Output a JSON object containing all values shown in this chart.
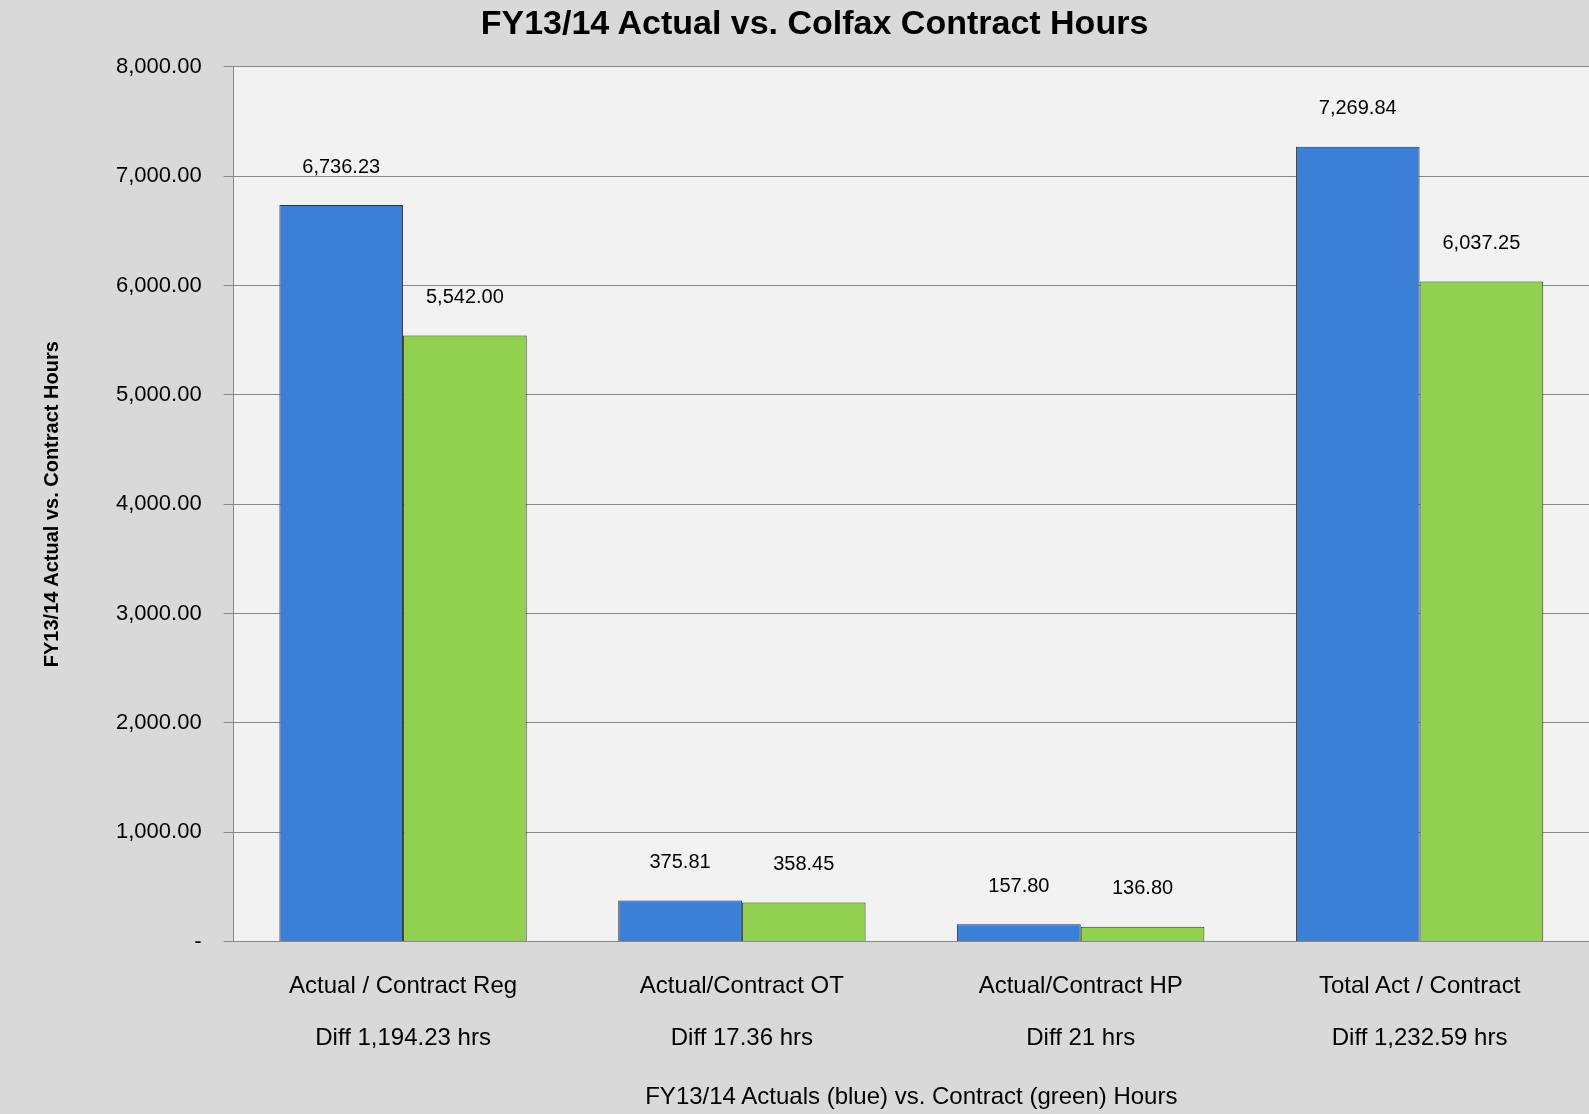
{
  "chart_data": {
    "type": "bar",
    "title": "FY13/14 Actual vs. Colfax Contract Hours",
    "xlabel": "FY13/14 Actuals (blue) vs. Contract (green) Hours",
    "ylabel": "FY13/14 Actual vs. Contract Hours",
    "categories": [
      "Actual / Contract Reg\nDiff 1,194.23 hrs",
      "Actual/Contract OT\nDiff 17.36 hrs",
      "Actual/Contract HP\nDiff 21 hrs",
      "Total Act / Contract\nDiff 1,232.59 hrs"
    ],
    "series": [
      {
        "color": "#3b7fd6",
        "values": [
          6736.23,
          375.81,
          157.8,
          7269.84
        ],
        "value_labels": [
          "6,736.23",
          "375.81",
          "157.80",
          "7,269.84"
        ]
      },
      {
        "color": "#92d050",
        "values": [
          5542,
          358.45,
          136.8,
          6037.25
        ],
        "value_labels": [
          "5,542.00",
          "358.45",
          "136.80",
          "6,037.25"
        ]
      }
    ],
    "ylim": [
      0,
      8000
    ],
    "yticks": [
      {
        "value": 0,
        "label": "-"
      },
      {
        "value": 1000,
        "label": "1,000.00"
      },
      {
        "value": 2000,
        "label": "2,000.00"
      },
      {
        "value": 3000,
        "label": "3,000.00"
      },
      {
        "value": 4000,
        "label": "4,000.00"
      },
      {
        "value": 5000,
        "label": "5,000.00"
      },
      {
        "value": 6000,
        "label": "6,000.00"
      },
      {
        "value": 7000,
        "label": "7,000.00"
      },
      {
        "value": 8000,
        "label": "8,000.00"
      }
    ],
    "grid": "y",
    "legend": false
  }
}
